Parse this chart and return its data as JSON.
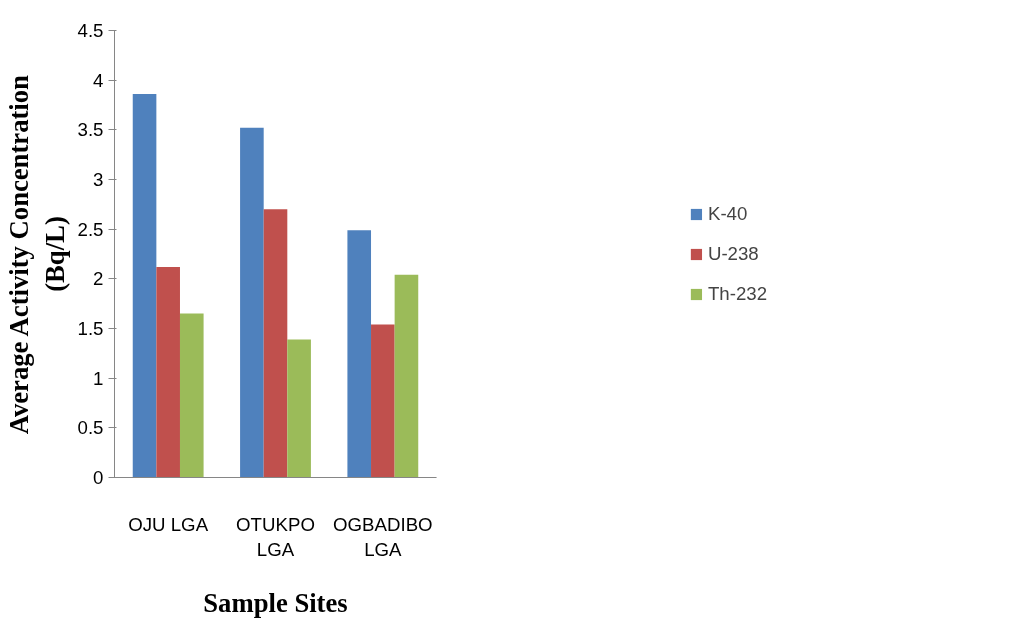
{
  "chart_data": {
    "type": "bar",
    "xlabel": "Sample Sites",
    "ylabel": "Average Activity Concentration (Bq/L)",
    "categories": [
      "OJU LGA",
      "OTUKPO LGA",
      "OGBADIBO LGA"
    ],
    "series": [
      {
        "name": "K-40",
        "color": "#4f81bd",
        "values": [
          3.86,
          3.52,
          2.49
        ]
      },
      {
        "name": "U-238",
        "color": "#c0504d",
        "values": [
          2.12,
          2.7,
          1.54
        ]
      },
      {
        "name": "Th-232",
        "color": "#9bbb59",
        "values": [
          1.65,
          1.39,
          2.04
        ]
      }
    ],
    "ylim": [
      0,
      4.5
    ],
    "yticks": [
      0,
      0.5,
      1,
      1.5,
      2,
      2.5,
      3,
      3.5,
      4,
      4.5
    ],
    "grid": false,
    "legend": "right"
  }
}
